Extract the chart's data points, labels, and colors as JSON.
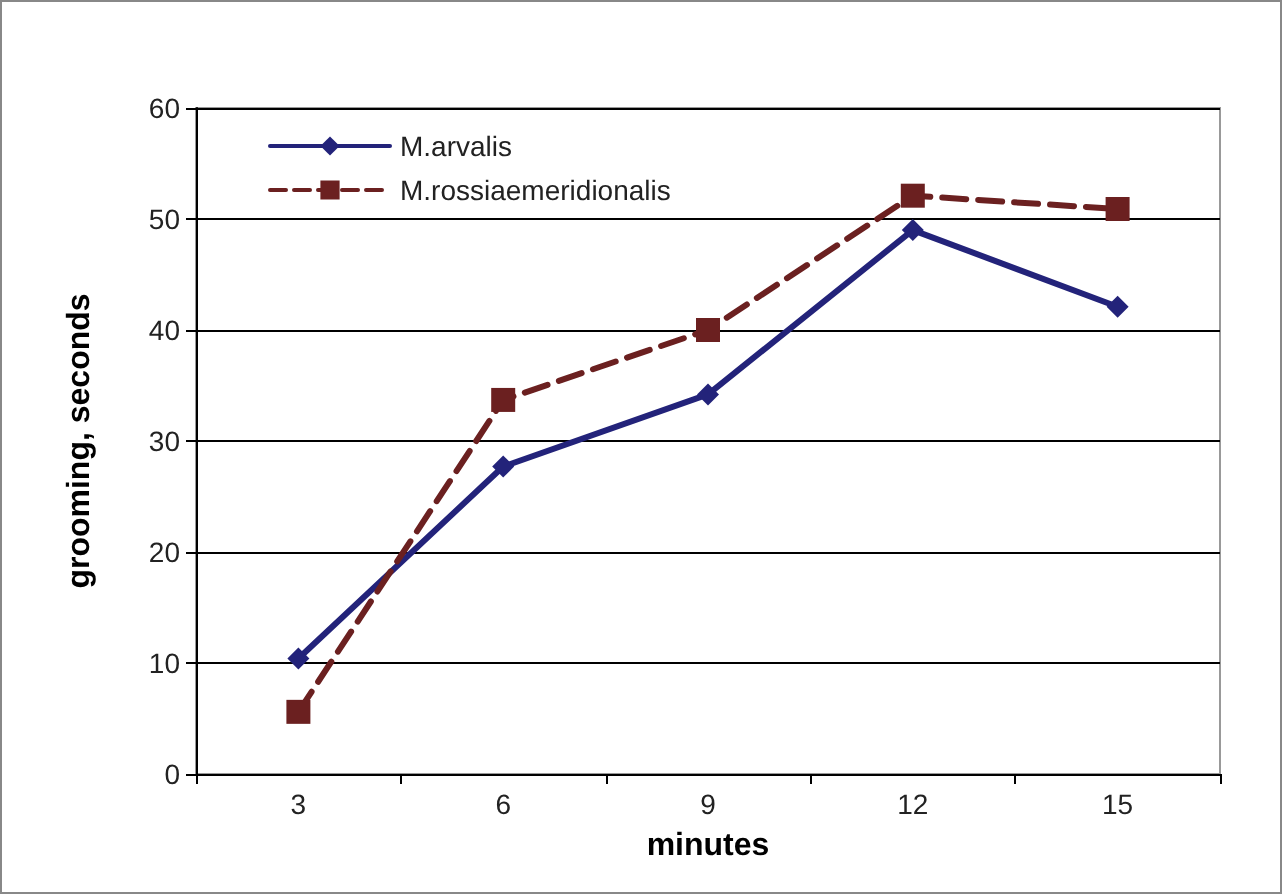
{
  "chart_data": {
    "type": "line",
    "xlabel": "minutes",
    "ylabel": "grooming, seconds",
    "categories": [
      "3",
      "6",
      "9",
      "12",
      "15"
    ],
    "series": [
      {
        "name": "M.arvalis",
        "color": "#23237a",
        "values": [
          10.4,
          27.7,
          34.2,
          49.0,
          42.1
        ],
        "marker": "diamond",
        "line_style": "solid"
      },
      {
        "name": "M.rossiaemeridionalis",
        "color": "#6b2020",
        "values": [
          5.6,
          33.7,
          40.0,
          52.1,
          50.9
        ],
        "marker": "square",
        "line_style": "dashed"
      }
    ],
    "ylim": [
      0,
      60
    ],
    "yticks": [
      0,
      10,
      20,
      30,
      40,
      50,
      60
    ],
    "grid": "y",
    "legend": "top left"
  }
}
